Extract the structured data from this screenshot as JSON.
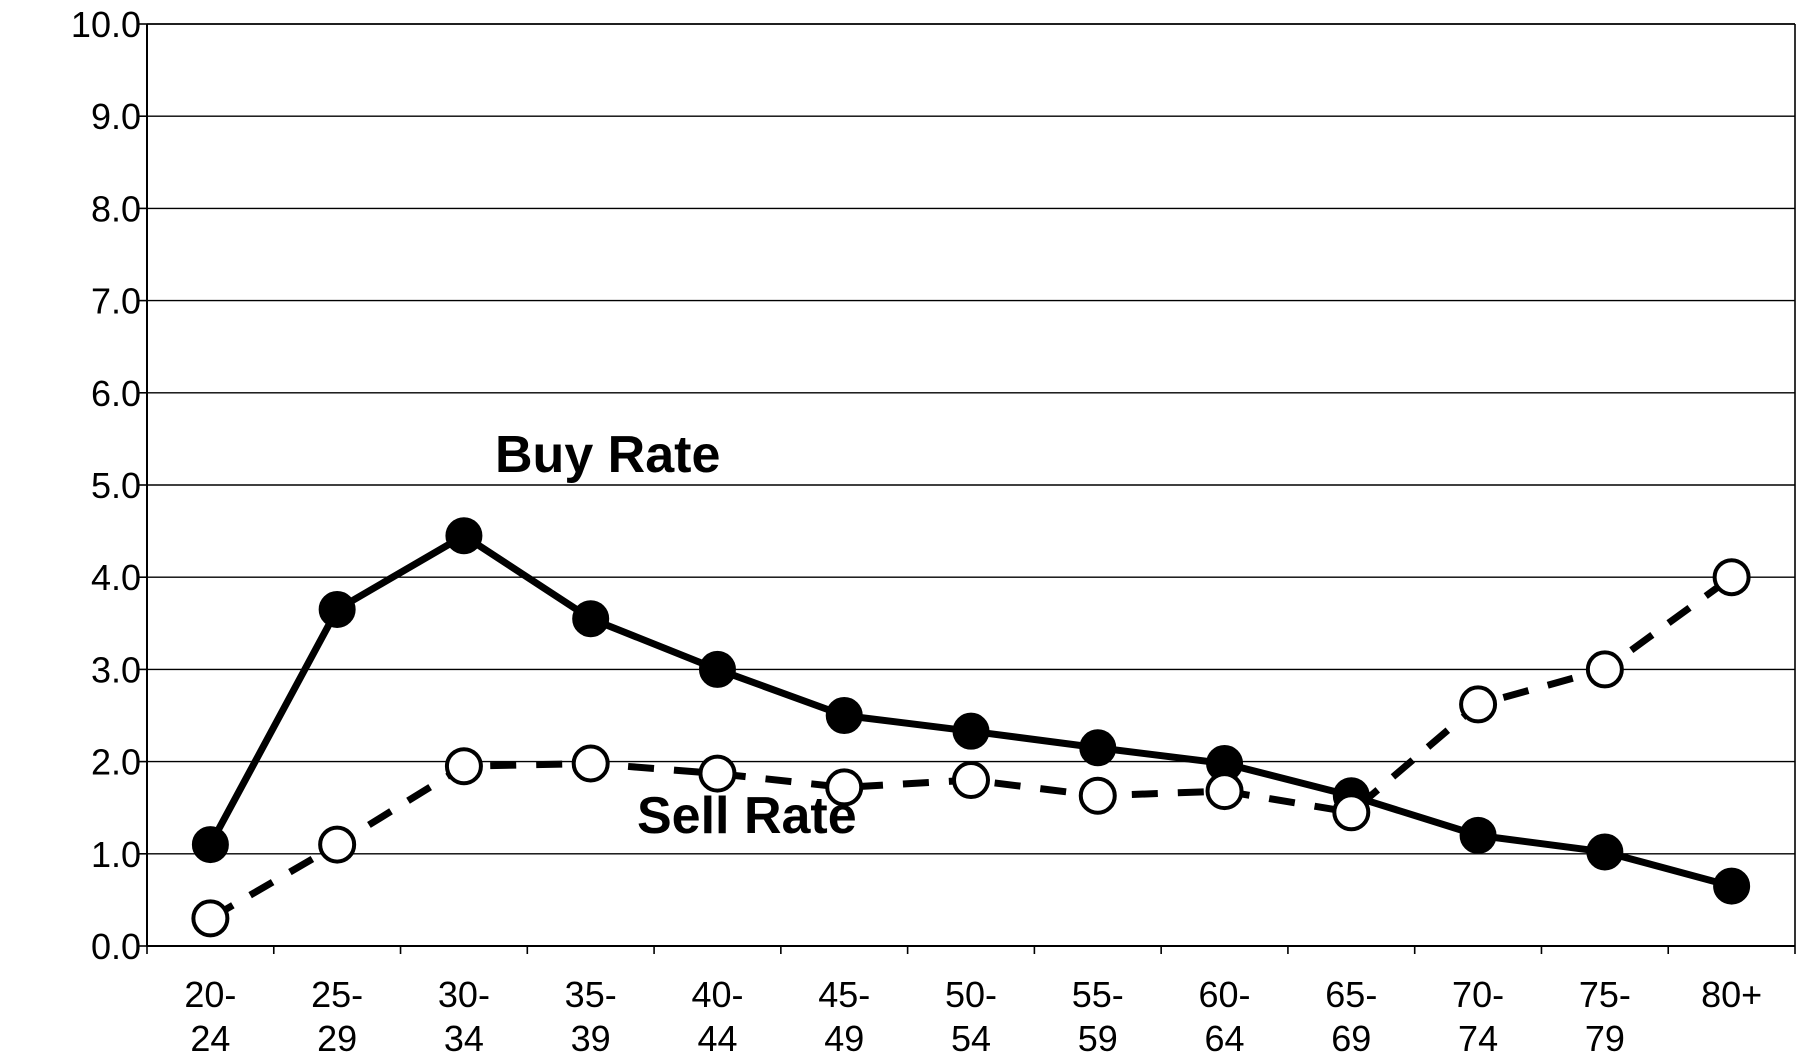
{
  "chart_data": {
    "type": "line",
    "categories": [
      [
        "20-",
        "24"
      ],
      [
        "25-",
        "29"
      ],
      [
        "30-",
        "34"
      ],
      [
        "35-",
        "39"
      ],
      [
        "40-",
        "44"
      ],
      [
        "45-",
        "49"
      ],
      [
        "50-",
        "54"
      ],
      [
        "55-",
        "59"
      ],
      [
        "60-",
        "64"
      ],
      [
        "65-",
        "69"
      ],
      [
        "70-",
        "74"
      ],
      [
        "75-",
        "79"
      ],
      [
        "80+"
      ]
    ],
    "y_ticks": [
      "0.0",
      "1.0",
      "2.0",
      "3.0",
      "4.0",
      "5.0",
      "6.0",
      "7.0",
      "8.0",
      "9.0",
      "10.0"
    ],
    "ylim": [
      0,
      10
    ],
    "grid": true,
    "series": [
      {
        "name": "Buy Rate",
        "line_style": "solid",
        "marker": "filled-circle",
        "color": "#000000",
        "values": [
          1.1,
          3.65,
          4.45,
          3.55,
          3.0,
          2.5,
          2.33,
          2.15,
          1.98,
          1.63,
          1.2,
          1.02,
          0.65
        ]
      },
      {
        "name": "Sell Rate",
        "line_style": "dashed",
        "marker": "open-circle",
        "color": "#000000",
        "values": [
          0.3,
          1.1,
          1.95,
          1.98,
          1.87,
          1.72,
          1.8,
          1.63,
          1.68,
          1.45,
          2.62,
          3.0,
          4.0
        ]
      }
    ]
  }
}
